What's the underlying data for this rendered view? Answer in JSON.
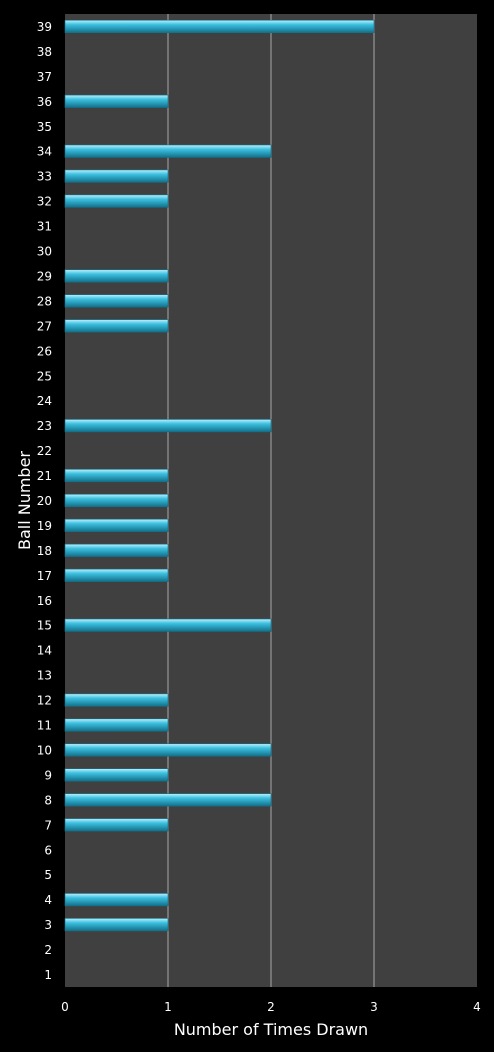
{
  "chart_data": {
    "type": "bar",
    "orientation": "horizontal",
    "xlabel": "Number of Times Drawn",
    "ylabel": "Ball Number",
    "xlim": [
      0,
      4
    ],
    "xticks": [
      "0",
      "1",
      "2",
      "3",
      "4"
    ],
    "grid": "vertical",
    "categories": [
      "1",
      "2",
      "3",
      "4",
      "5",
      "6",
      "7",
      "8",
      "9",
      "10",
      "11",
      "12",
      "13",
      "14",
      "15",
      "16",
      "17",
      "18",
      "19",
      "20",
      "21",
      "22",
      "23",
      "24",
      "25",
      "26",
      "27",
      "28",
      "29",
      "30",
      "31",
      "32",
      "33",
      "34",
      "35",
      "36",
      "37",
      "38",
      "39"
    ],
    "values": [
      0,
      0,
      1,
      1,
      0,
      0,
      1,
      2,
      1,
      2,
      1,
      1,
      0,
      0,
      2,
      0,
      1,
      1,
      1,
      1,
      1,
      0,
      2,
      0,
      0,
      0,
      1,
      1,
      1,
      0,
      0,
      1,
      1,
      2,
      0,
      1,
      0,
      0,
      3
    ],
    "colors": {
      "background": "#000000",
      "plot_area": "#404040",
      "bar": "#3cc0e0",
      "bar_highlight": "#bff0fb",
      "bar_shadow": "#12708a",
      "grid": "#a8a8a8",
      "text": "#ffffff"
    }
  }
}
